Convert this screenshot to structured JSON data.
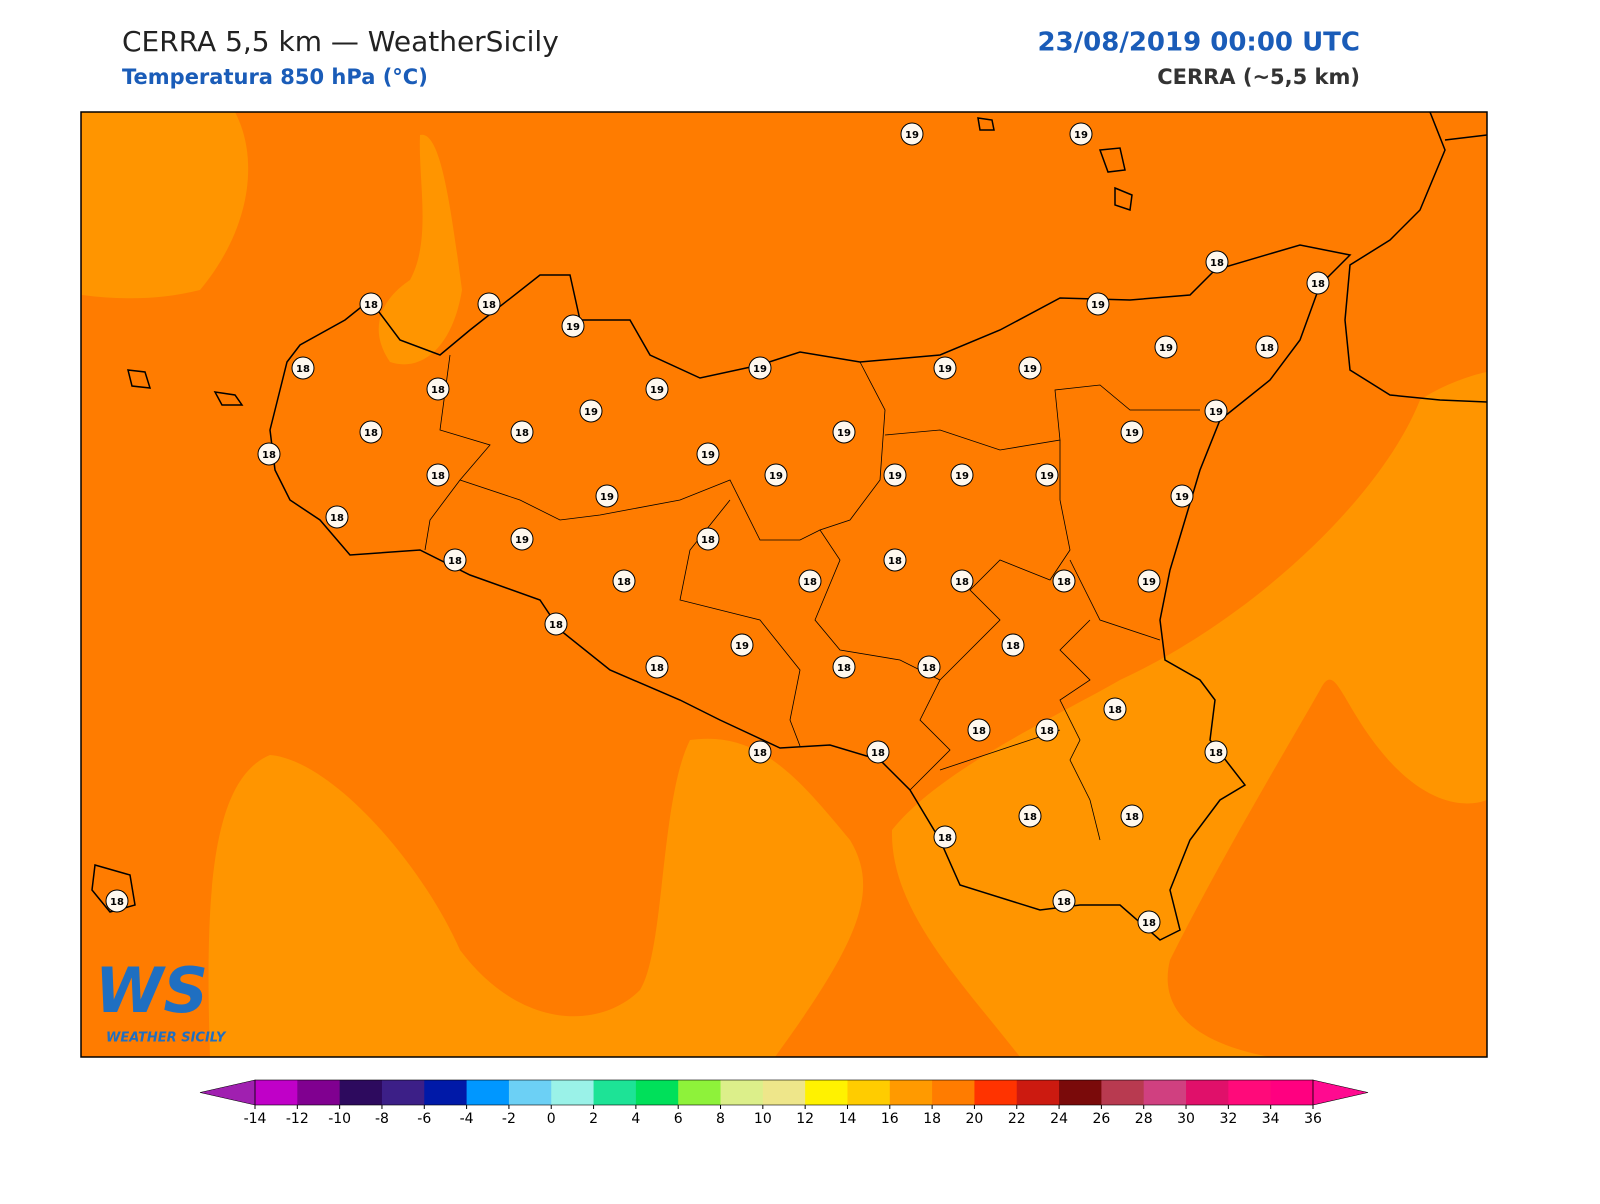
{
  "header": {
    "title": "CERRA 5,5 km — WeatherSicily",
    "subtitle": "Temperatura 850 hPa (°C)",
    "date": "23/08/2019 00:00 UTC",
    "source": "CERRA (~5,5 km)"
  },
  "stations": {
    "values": [
      19,
      19,
      18,
      18,
      18,
      18,
      19,
      19,
      18,
      18,
      19,
      19,
      19,
      19,
      19,
      18,
      18,
      18,
      19,
      19,
      19,
      19,
      18,
      18,
      19,
      19,
      19,
      19,
      19,
      18,
      19,
      19,
      19,
      18,
      18,
      18,
      18,
      18,
      18,
      18,
      19,
      18,
      19,
      18,
      18,
      18,
      18,
      18,
      18,
      18,
      18,
      18,
      18,
      18,
      18,
      18,
      18,
      18,
      18
    ]
  },
  "colorbar": {
    "ticks": [
      -14,
      -12,
      -10,
      -8,
      -6,
      -4,
      -2,
      0,
      2,
      4,
      6,
      8,
      10,
      12,
      14,
      16,
      18,
      20,
      22,
      24,
      26,
      28,
      30,
      32,
      34,
      36
    ],
    "colors": [
      "#c000c8",
      "#800090",
      "#2d0a5e",
      "#3c1f87",
      "#0019a8",
      "#0097ff",
      "#6cd0f5",
      "#9af2e8",
      "#1de396",
      "#00e05a",
      "#8ef23a",
      "#dcef8a",
      "#eee68a",
      "#fff200",
      "#ffcc00",
      "#ff9a00",
      "#ff7c00",
      "#ff3300",
      "#cc1a10",
      "#7a0a0a",
      "#b83a50",
      "#d04080",
      "#e0106a",
      "#ff0a7a",
      "#ff0080"
    ],
    "extend_colors": [
      "#a020b0",
      "#ff0a90"
    ]
  },
  "logo": {
    "mark": "WS",
    "name": "WEATHER SICILY"
  }
}
